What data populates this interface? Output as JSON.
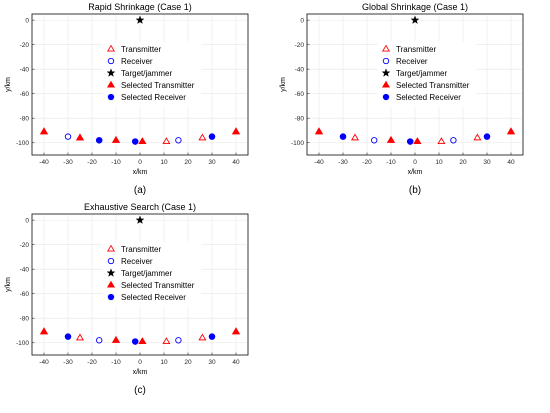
{
  "colors": {
    "transmitter": "#ff0000",
    "receiver": "#0000ff",
    "target": "#000000",
    "grid": "#e6e6e6",
    "axis": "#262626"
  },
  "legend_entries": [
    "Transmitter",
    "Receiver",
    "Target/jammer",
    "Selected Transmitter",
    "Selected Receiver"
  ],
  "chart_data": [
    {
      "type": "scatter",
      "panel_label": "(a)",
      "title": "Rapid Shrinkage (Case 1)",
      "xlabel": "x/km",
      "ylabel": "y/km",
      "xlim": [
        -45,
        45
      ],
      "ylim": [
        -110,
        5
      ],
      "xticks": [
        -40,
        -30,
        -20,
        -10,
        0,
        10,
        20,
        30,
        40
      ],
      "yticks": [
        0,
        -20,
        -40,
        -60,
        -80,
        -100
      ],
      "grid": true,
      "legend_placement": "center-right",
      "series": [
        {
          "name": "Transmitter",
          "marker": "triangle-open",
          "points": [
            [
              -40,
              -91
            ],
            [
              -25,
              -96
            ],
            [
              -10,
              -98
            ],
            [
              1,
              -99
            ],
            [
              11,
              -99
            ],
            [
              26,
              -96
            ],
            [
              40,
              -91
            ]
          ]
        },
        {
          "name": "Receiver",
          "marker": "circle-open",
          "points": [
            [
              -30,
              -95
            ],
            [
              -17,
              -98
            ],
            [
              -2,
              -99
            ],
            [
              16,
              -98
            ],
            [
              30,
              -95
            ]
          ]
        },
        {
          "name": "Target/jammer",
          "marker": "star",
          "points": [
            [
              0,
              0
            ]
          ]
        },
        {
          "name": "Selected Transmitter",
          "marker": "triangle-filled",
          "points": [
            [
              -40,
              -91
            ],
            [
              -25,
              -96
            ],
            [
              -10,
              -98
            ],
            [
              1,
              -99
            ],
            [
              40,
              -91
            ]
          ]
        },
        {
          "name": "Selected Receiver",
          "marker": "circle-filled",
          "points": [
            [
              -17,
              -98
            ],
            [
              -2,
              -99
            ],
            [
              30,
              -95
            ]
          ]
        }
      ]
    },
    {
      "type": "scatter",
      "panel_label": "(b)",
      "title": "Global Shrinkage (Case 1)",
      "xlabel": "x/km",
      "ylabel": "y/km",
      "xlim": [
        -45,
        45
      ],
      "ylim": [
        -110,
        5
      ],
      "xticks": [
        -40,
        -30,
        -20,
        -10,
        0,
        10,
        20,
        30,
        40
      ],
      "yticks": [
        0,
        -20,
        -40,
        -60,
        -80,
        -100
      ],
      "grid": true,
      "legend_placement": "center-right",
      "series": [
        {
          "name": "Transmitter",
          "marker": "triangle-open",
          "points": [
            [
              -40,
              -91
            ],
            [
              -25,
              -96
            ],
            [
              -10,
              -98
            ],
            [
              1,
              -99
            ],
            [
              11,
              -99
            ],
            [
              26,
              -96
            ],
            [
              40,
              -91
            ]
          ]
        },
        {
          "name": "Receiver",
          "marker": "circle-open",
          "points": [
            [
              -30,
              -95
            ],
            [
              -17,
              -98
            ],
            [
              -2,
              -99
            ],
            [
              16,
              -98
            ],
            [
              30,
              -95
            ]
          ]
        },
        {
          "name": "Target/jammer",
          "marker": "star",
          "points": [
            [
              0,
              0
            ]
          ]
        },
        {
          "name": "Selected Transmitter",
          "marker": "triangle-filled",
          "points": [
            [
              -40,
              -91
            ],
            [
              -10,
              -98
            ],
            [
              1,
              -99
            ],
            [
              40,
              -91
            ]
          ]
        },
        {
          "name": "Selected Receiver",
          "marker": "circle-filled",
          "points": [
            [
              -30,
              -95
            ],
            [
              -2,
              -99
            ],
            [
              30,
              -95
            ]
          ]
        }
      ]
    },
    {
      "type": "scatter",
      "panel_label": "(c)",
      "title": "Exhaustive Search (Case 1)",
      "xlabel": "x/km",
      "ylabel": "y/km",
      "xlim": [
        -45,
        45
      ],
      "ylim": [
        -110,
        5
      ],
      "xticks": [
        -40,
        -30,
        -20,
        -10,
        0,
        10,
        20,
        30,
        40
      ],
      "yticks": [
        0,
        -20,
        -40,
        -60,
        -80,
        -100
      ],
      "grid": true,
      "legend_placement": "center-right",
      "series": [
        {
          "name": "Transmitter",
          "marker": "triangle-open",
          "points": [
            [
              -40,
              -91
            ],
            [
              -25,
              -96
            ],
            [
              -10,
              -98
            ],
            [
              1,
              -99
            ],
            [
              11,
              -99
            ],
            [
              26,
              -96
            ],
            [
              40,
              -91
            ]
          ]
        },
        {
          "name": "Receiver",
          "marker": "circle-open",
          "points": [
            [
              -30,
              -95
            ],
            [
              -17,
              -98
            ],
            [
              -2,
              -99
            ],
            [
              16,
              -98
            ],
            [
              30,
              -95
            ]
          ]
        },
        {
          "name": "Target/jammer",
          "marker": "star",
          "points": [
            [
              0,
              0
            ]
          ]
        },
        {
          "name": "Selected Transmitter",
          "marker": "triangle-filled",
          "points": [
            [
              -40,
              -91
            ],
            [
              -10,
              -98
            ],
            [
              1,
              -99
            ],
            [
              40,
              -91
            ]
          ]
        },
        {
          "name": "Selected Receiver",
          "marker": "circle-filled",
          "points": [
            [
              -30,
              -95
            ],
            [
              -2,
              -99
            ],
            [
              30,
              -95
            ]
          ]
        }
      ]
    }
  ]
}
